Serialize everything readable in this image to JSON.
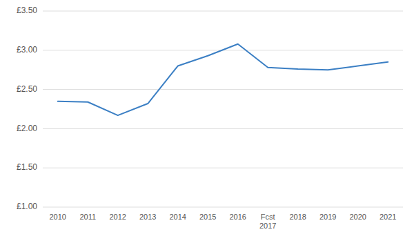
{
  "chart_data": {
    "type": "line",
    "categories": [
      "2010",
      "2011",
      "2012",
      "2013",
      "2014",
      "2015",
      "2016",
      "Fcst\n2017",
      "2018",
      "2019",
      "2020",
      "2021"
    ],
    "values": [
      2.35,
      2.34,
      2.17,
      2.32,
      2.8,
      2.93,
      3.08,
      2.78,
      2.76,
      2.75,
      2.8,
      2.85
    ],
    "color": "#3B7FC4",
    "ylim": [
      1.0,
      3.5
    ],
    "yticks": [
      {
        "value": 1.0,
        "label": "£1.00"
      },
      {
        "value": 1.5,
        "label": "£1.50"
      },
      {
        "value": 2.0,
        "label": "£2.00"
      },
      {
        "value": 2.5,
        "label": "£2.50"
      },
      {
        "value": 3.0,
        "label": "£3.00"
      },
      {
        "value": 3.5,
        "label": "£3.50"
      }
    ],
    "grid": true
  }
}
